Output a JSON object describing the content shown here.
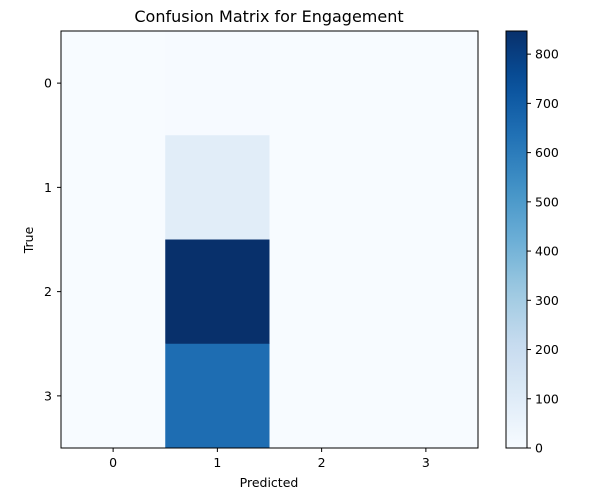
{
  "chart_data": {
    "type": "heatmap",
    "title": "Confusion Matrix for Engagement",
    "xlabel": "Predicted",
    "ylabel": "True",
    "x_categories": [
      "0",
      "1",
      "2",
      "3"
    ],
    "y_categories": [
      "0",
      "1",
      "2",
      "3"
    ],
    "matrix": [
      [
        0,
        4,
        0,
        0
      ],
      [
        0,
        95,
        0,
        0
      ],
      [
        0,
        847,
        0,
        0
      ],
      [
        0,
        650,
        0,
        0
      ]
    ],
    "colormap": "Blues",
    "colorbar": {
      "range": [
        0,
        847
      ],
      "ticks": [
        0,
        100,
        200,
        300,
        400,
        500,
        600,
        700,
        800
      ]
    },
    "grid": false,
    "legend": "colorbar-right"
  }
}
